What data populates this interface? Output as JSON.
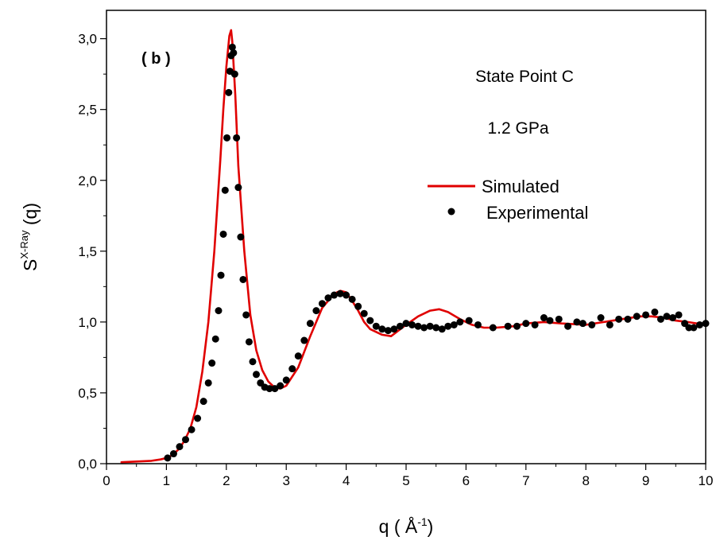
{
  "chart_data": {
    "type": "line",
    "panel_label": "( b )",
    "annotations": [
      "State Point C",
      "1.2 GPa"
    ],
    "xlabel": "q ( Å",
    "xlabel_sup": "-1",
    "xlabel_close": ")",
    "ylabel": "S",
    "ylabel_sup": "X-Ray",
    "ylabel_suffix": " (q)",
    "xlim": [
      0,
      10
    ],
    "ylim": [
      0,
      3.2
    ],
    "xticks": [
      "0",
      "1",
      "2",
      "3",
      "4",
      "5",
      "6",
      "7",
      "8",
      "9",
      "10"
    ],
    "yticks": [
      "0,0",
      "0,5",
      "1,0",
      "1,5",
      "2,0",
      "2,5",
      "3,0"
    ],
    "legend_placement": "right",
    "grid": false,
    "series": [
      {
        "name": "Simulated",
        "style": "line",
        "color": "#e00000",
        "x": [
          0.25,
          0.5,
          0.75,
          0.9,
          1.0,
          1.1,
          1.2,
          1.3,
          1.4,
          1.5,
          1.6,
          1.7,
          1.8,
          1.9,
          1.95,
          2.0,
          2.05,
          2.08,
          2.1,
          2.15,
          2.2,
          2.3,
          2.4,
          2.5,
          2.6,
          2.7,
          2.8,
          2.9,
          3.0,
          3.2,
          3.4,
          3.6,
          3.8,
          3.9,
          4.0,
          4.1,
          4.2,
          4.3,
          4.4,
          4.6,
          4.75,
          5.0,
          5.2,
          5.4,
          5.55,
          5.7,
          5.9,
          6.1,
          6.3,
          6.5,
          6.8,
          7.0,
          7.3,
          7.6,
          8.0,
          8.3,
          8.6,
          8.9,
          9.1,
          9.3,
          9.5,
          9.7,
          9.85,
          10.0
        ],
        "y": [
          0.01,
          0.015,
          0.02,
          0.03,
          0.04,
          0.06,
          0.1,
          0.16,
          0.25,
          0.4,
          0.65,
          1.0,
          1.5,
          2.15,
          2.5,
          2.8,
          3.02,
          3.06,
          2.98,
          2.6,
          2.1,
          1.5,
          1.05,
          0.8,
          0.66,
          0.58,
          0.54,
          0.53,
          0.55,
          0.68,
          0.9,
          1.1,
          1.2,
          1.22,
          1.21,
          1.15,
          1.08,
          1.0,
          0.95,
          0.91,
          0.9,
          0.98,
          1.04,
          1.08,
          1.09,
          1.07,
          1.02,
          0.98,
          0.96,
          0.96,
          0.97,
          0.99,
          1.0,
          0.99,
          0.98,
          1.0,
          1.02,
          1.04,
          1.04,
          1.03,
          1.01,
          1.0,
          0.99,
          0.99
        ]
      },
      {
        "name": "Experimental",
        "style": "scatter",
        "color": "#000000",
        "x": [
          1.02,
          1.12,
          1.22,
          1.32,
          1.42,
          1.52,
          1.62,
          1.7,
          1.76,
          1.82,
          1.87,
          1.91,
          1.95,
          1.98,
          2.01,
          2.04,
          2.06,
          2.08,
          2.1,
          2.12,
          2.14,
          2.17,
          2.2,
          2.24,
          2.28,
          2.33,
          2.38,
          2.44,
          2.5,
          2.57,
          2.64,
          2.72,
          2.81,
          2.9,
          3.0,
          3.1,
          3.2,
          3.3,
          3.4,
          3.5,
          3.6,
          3.7,
          3.8,
          3.9,
          4.0,
          4.1,
          4.2,
          4.3,
          4.4,
          4.5,
          4.6,
          4.7,
          4.8,
          4.9,
          5.0,
          5.1,
          5.2,
          5.3,
          5.4,
          5.5,
          5.6,
          5.7,
          5.8,
          5.9,
          6.05,
          6.2,
          6.45,
          6.7,
          6.85,
          7.0,
          7.15,
          7.3,
          7.4,
          7.55,
          7.7,
          7.85,
          7.95,
          8.1,
          8.25,
          8.4,
          8.55,
          8.7,
          8.85,
          9.0,
          9.15,
          9.25,
          9.35,
          9.45,
          9.55,
          9.65,
          9.72,
          9.8,
          9.9,
          10.0
        ],
        "y": [
          0.04,
          0.07,
          0.12,
          0.17,
          0.24,
          0.32,
          0.44,
          0.57,
          0.71,
          0.88,
          1.08,
          1.33,
          1.62,
          1.93,
          2.3,
          2.62,
          2.77,
          2.88,
          2.94,
          2.9,
          2.75,
          2.3,
          1.95,
          1.6,
          1.3,
          1.05,
          0.86,
          0.72,
          0.63,
          0.57,
          0.54,
          0.53,
          0.53,
          0.55,
          0.59,
          0.67,
          0.76,
          0.87,
          0.99,
          1.08,
          1.13,
          1.17,
          1.19,
          1.2,
          1.19,
          1.16,
          1.11,
          1.06,
          1.01,
          0.97,
          0.95,
          0.94,
          0.95,
          0.97,
          0.99,
          0.98,
          0.97,
          0.96,
          0.97,
          0.96,
          0.95,
          0.97,
          0.98,
          1.0,
          1.01,
          0.98,
          0.96,
          0.97,
          0.97,
          0.99,
          0.98,
          1.03,
          1.01,
          1.02,
          0.97,
          1.0,
          0.99,
          0.98,
          1.03,
          0.98,
          1.02,
          1.02,
          1.04,
          1.05,
          1.07,
          1.02,
          1.04,
          1.03,
          1.05,
          0.99,
          0.96,
          0.96,
          0.98,
          0.99
        ]
      }
    ]
  }
}
